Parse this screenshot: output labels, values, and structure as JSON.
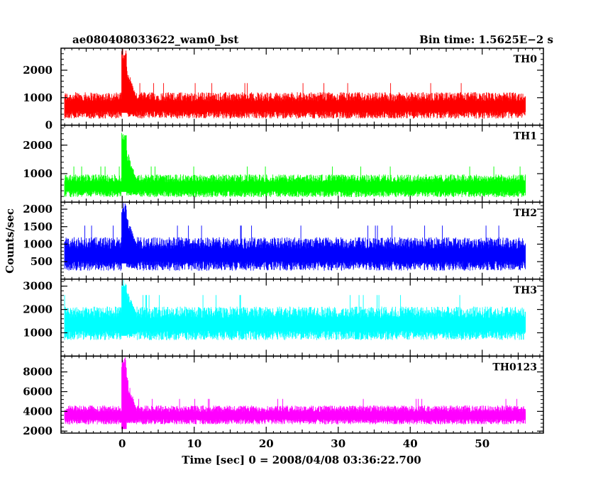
{
  "header": {
    "title_left": "ae080408033622_wam0_bst",
    "title_right": "Bin time: 1.5625E−2 s"
  },
  "chart_data": {
    "type": "line",
    "xlabel": "Time [sec] 0 = 2008/04/08 03:36:22.700",
    "ylabel": "Counts/sec",
    "xlim": [
      -8.5,
      58.5
    ],
    "x_ticks": [
      0,
      10,
      20,
      30,
      40,
      50
    ],
    "x_tick_labels": [
      "0",
      "10",
      "20",
      "30",
      "40",
      "50"
    ],
    "data_range_x": [
      -8,
      56
    ],
    "panels": [
      {
        "name": "TH0",
        "color": "#ff0000",
        "ylim": [
          0,
          2800
        ],
        "ticks": [
          0,
          1000,
          2000
        ],
        "tick_labels": [
          "0",
          "1000",
          "2000"
        ],
        "baseline": 750,
        "spread": 300,
        "burst_peak": 2800
      },
      {
        "name": "TH1",
        "color": "#00ff00",
        "ylim": [
          0,
          2700
        ],
        "ticks": [
          1000,
          2000
        ],
        "tick_labels": [
          "1000",
          "2000"
        ],
        "baseline": 600,
        "spread": 250,
        "burst_peak": 2450
      },
      {
        "name": "TH2",
        "color": "#0000ff",
        "ylim": [
          0,
          2200
        ],
        "ticks": [
          500,
          1000,
          1500,
          2000
        ],
        "tick_labels": [
          "500",
          "1000",
          "1500",
          "2000"
        ],
        "baseline": 750,
        "spread": 300,
        "burst_peak": 2200
      },
      {
        "name": "TH3",
        "color": "#00ffff",
        "ylim": [
          0,
          3300
        ],
        "ticks": [
          1000,
          2000,
          3000
        ],
        "tick_labels": [
          "1000",
          "2000",
          "3000"
        ],
        "baseline": 1450,
        "spread": 450,
        "burst_peak": 3300
      },
      {
        "name": "TH0123",
        "color": "#ff00ff",
        "ylim": [
          1800,
          9600
        ],
        "ticks": [
          2000,
          4000,
          6000,
          8000
        ],
        "tick_labels": [
          "2000",
          "4000",
          "6000",
          "8000"
        ],
        "baseline": 3700,
        "spread": 600,
        "burst_peak": 9600
      }
    ]
  }
}
